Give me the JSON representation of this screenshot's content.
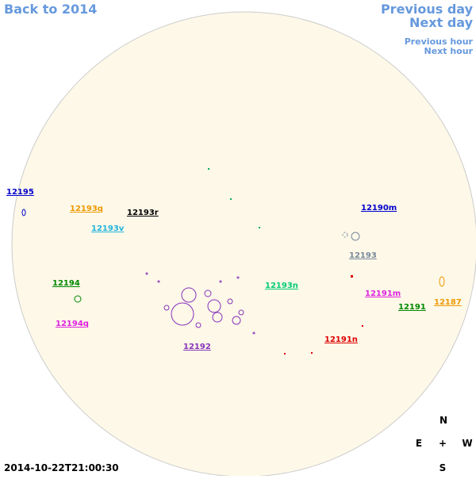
{
  "nav": {
    "back": "Back to 2014",
    "previous_day": "Previous day",
    "next_day": "Next day",
    "previous_hour": "Previous hour",
    "next_hour": "Next hour"
  },
  "regions": [
    {
      "label": "12195",
      "color": "#0000cc"
    },
    {
      "label": "12193q",
      "color": "#ee9900"
    },
    {
      "label": "12193r",
      "color": "#000000"
    },
    {
      "label": "12193v",
      "color": "#22b5dd"
    },
    {
      "label": "12190m",
      "color": "#0000cc"
    },
    {
      "label": "12193",
      "color": "#778899"
    },
    {
      "label": "12194",
      "color": "#008800"
    },
    {
      "label": "12193n",
      "color": "#00cc77"
    },
    {
      "label": "12191m",
      "color": "#dd22dd"
    },
    {
      "label": "12191",
      "color": "#008800"
    },
    {
      "label": "12187",
      "color": "#ee9900"
    },
    {
      "label": "12194q",
      "color": "#dd22dd"
    },
    {
      "label": "12192",
      "color": "#8833bb"
    },
    {
      "label": "12191n",
      "color": "#dd0000"
    }
  ],
  "timestamp": "2014-10-22T21:00:30",
  "compass": {
    "north": "N",
    "east": "E",
    "center": "+",
    "west": "W",
    "south": "S"
  }
}
